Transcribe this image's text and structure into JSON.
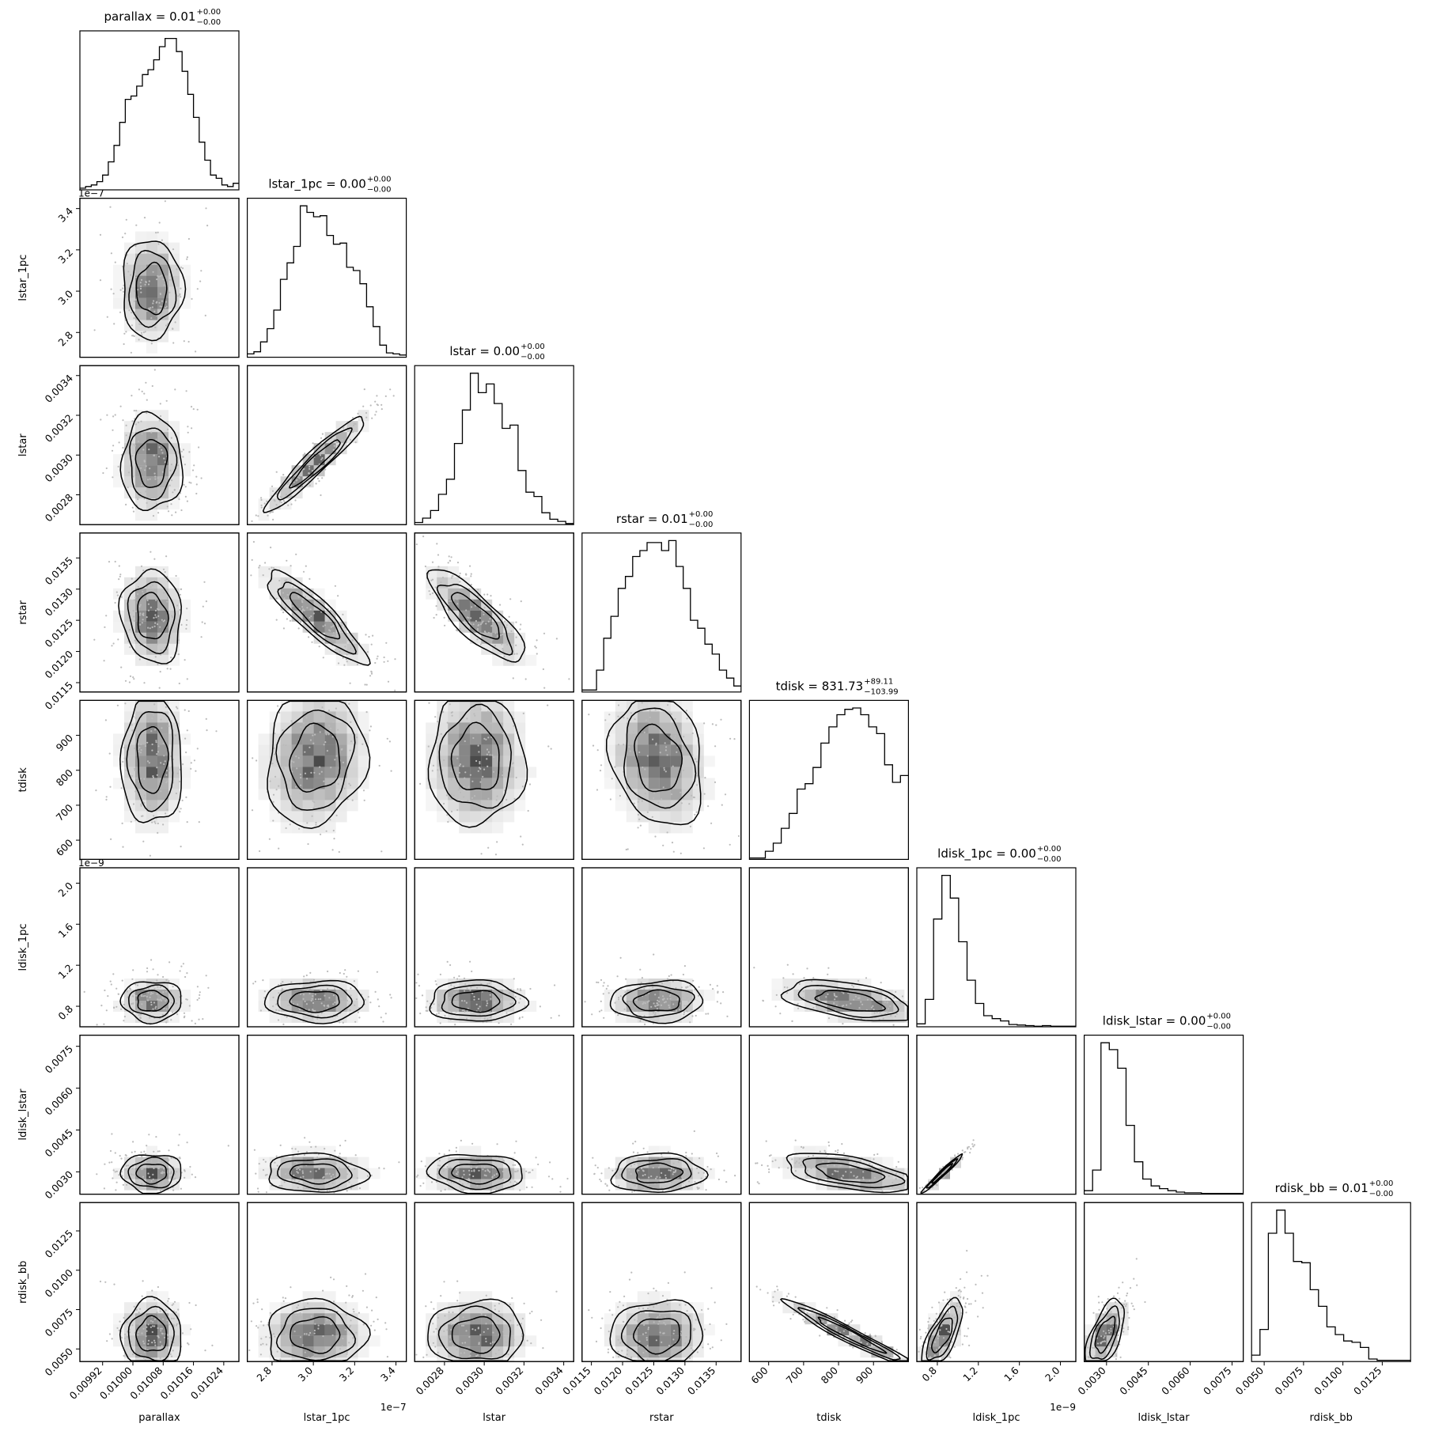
{
  "chart_data": {
    "type": "corner",
    "parameters": [
      {
        "name": "parallax",
        "title": "parallax = 0.01",
        "title_sup": "+0.00",
        "title_sub": "−0.00",
        "range": [
          0.00986,
          0.01028
        ],
        "median": 0.01005,
        "spread": 4e-05,
        "hist": [
          1,
          2,
          3,
          5,
          9,
          17,
          27,
          41,
          55,
          57,
          63,
          70,
          73,
          79,
          87,
          92,
          92,
          84,
          72,
          58,
          44,
          29,
          18,
          9,
          7,
          3,
          2,
          4
        ],
        "ticks": [
          0.00992,
          0.01,
          0.01008,
          0.01016,
          0.01024
        ],
        "tick_labels": [
          "0.00992",
          "0.01000",
          "0.01008",
          "0.01016",
          "0.01024"
        ],
        "offset": ""
      },
      {
        "name": "lstar_1pc",
        "title": "lstar_1pc = 0.00",
        "title_sup": "+0.00",
        "title_sub": "−0.00",
        "range": [
          2.68e-07,
          3.45e-07
        ],
        "median": 3.01e-07,
        "spread": 1.2e-08,
        "hist": [
          3,
          5,
          14,
          26,
          43,
          71,
          86,
          101,
          138,
          132,
          128,
          129,
          111,
          103,
          104,
          82,
          79,
          67,
          46,
          28,
          11,
          4,
          3,
          2
        ],
        "ticks": [
          2.8e-07,
          3e-07,
          3.2e-07,
          3.4e-07
        ],
        "tick_labels": [
          "2.8",
          "3.0",
          "3.2",
          "3.4"
        ],
        "offset": "1e−7"
      },
      {
        "name": "lstar",
        "title": "lstar = 0.00",
        "title_sup": "+0.00",
        "title_sub": "−0.00",
        "range": [
          0.00265,
          0.00345
        ],
        "median": 0.00296,
        "spread": 0.00012,
        "hist": [
          2,
          6,
          13,
          28,
          42,
          75,
          106,
          140,
          122,
          130,
          112,
          89,
          92,
          50,
          30,
          26,
          11,
          5,
          3,
          1
        ],
        "ticks": [
          0.0028,
          0.003,
          0.0032,
          0.0034
        ],
        "tick_labels": [
          "0.0028",
          "0.0030",
          "0.0032",
          "0.0034"
        ],
        "offset": ""
      },
      {
        "name": "rstar",
        "title": "rstar = 0.01",
        "title_sup": "+0.00",
        "title_sub": "−0.00",
        "range": [
          0.01135,
          0.0139
        ],
        "median": 0.01256,
        "spread": 0.00037,
        "hist": [
          1,
          1,
          11,
          27,
          38,
          52,
          58,
          68,
          71,
          75,
          75,
          71,
          76,
          63,
          52,
          36,
          32,
          24,
          19,
          11,
          7,
          3
        ],
        "ticks": [
          0.0115,
          0.012,
          0.0125,
          0.013,
          0.0135
        ],
        "tick_labels": [
          "0.0115",
          "0.0120",
          "0.0125",
          "0.0130",
          "0.0135"
        ],
        "offset": ""
      },
      {
        "name": "tdisk",
        "title": "tdisk = 831.73",
        "title_sup": "+89.11",
        "title_sub": "−103.99",
        "range": [
          545,
          1000
        ],
        "median": 832,
        "spread": 95,
        "hist": [
          1,
          1,
          6,
          12,
          23,
          34,
          52,
          56,
          68,
          86,
          98,
          107,
          111,
          112,
          107,
          98,
          93,
          70,
          57,
          62
        ],
        "ticks": [
          600,
          700,
          800,
          900
        ],
        "tick_labels": [
          "600",
          "700",
          "800",
          "900"
        ],
        "offset": ""
      },
      {
        "name": "ldisk_1pc",
        "title": "ldisk_1pc = 0.00",
        "title_sup": "+0.00",
        "title_sub": "−0.00",
        "range": [
          6e-10,
          2.15e-09
        ],
        "median": 8.5e-10,
        "spread": 1e-10,
        "hist": [
          5,
          47,
          185,
          260,
          221,
          146,
          80,
          40,
          19,
          14,
          10,
          4,
          3,
          2,
          1,
          2,
          1,
          1,
          1
        ],
        "ticks": [
          8e-10,
          1.2e-09,
          1.6e-09,
          2e-09
        ],
        "tick_labels": [
          "0.8",
          "1.2",
          "1.6",
          "2.0"
        ],
        "offset": "1e−9"
      },
      {
        "name": "ldisk_lstar",
        "title": "ldisk_lstar = 0.00",
        "title_sup": "+0.00",
        "title_sub": "−0.00",
        "range": [
          0.0022,
          0.0079
        ],
        "median": 0.00295,
        "spread": 0.00035,
        "hist": [
          5,
          35,
          220,
          210,
          183,
          100,
          47,
          22,
          12,
          8,
          5,
          3,
          2,
          2,
          1,
          1,
          1,
          1,
          1
        ],
        "ticks": [
          0.003,
          0.0045,
          0.006,
          0.0075
        ],
        "tick_labels": [
          "0.0030",
          "0.0045",
          "0.0060",
          "0.0075"
        ],
        "offset": ""
      },
      {
        "name": "rdisk_bb",
        "title": "rdisk_bb = 0.01",
        "title_sup": "+0.00",
        "title_sub": "−0.00",
        "range": [
          0.0042,
          0.0143
        ],
        "median": 0.0059,
        "spread": 0.0011,
        "hist": [
          5,
          25,
          100,
          118,
          100,
          78,
          77,
          56,
          43,
          27,
          21,
          16,
          15,
          11,
          2,
          1,
          1,
          1,
          1
        ],
        "ticks": [
          0.005,
          0.0075,
          0.01,
          0.0125
        ],
        "tick_labels": [
          "0.0050",
          "0.0075",
          "0.0100",
          "0.0125"
        ],
        "offset": ""
      }
    ],
    "correlations": [
      [
        0,
        0,
        0,
        0,
        0,
        0,
        0,
        0
      ],
      [
        0,
        0,
        0,
        0,
        0,
        0,
        0,
        0
      ],
      [
        0,
        0.95,
        0,
        0,
        0,
        0,
        0,
        0
      ],
      [
        -0.1,
        -0.88,
        -0.82,
        0,
        0,
        0,
        0,
        0
      ],
      [
        0,
        0.1,
        0,
        -0.2,
        0,
        0,
        0,
        0
      ],
      [
        0,
        0,
        0,
        0.05,
        -0.5,
        0,
        0,
        0
      ],
      [
        0,
        -0.1,
        -0.1,
        0.05,
        -0.55,
        0.98,
        0,
        0
      ],
      [
        0,
        0,
        0,
        0.05,
        -0.97,
        0.7,
        0.6,
        0
      ]
    ],
    "contour_levels": [
      "1σ",
      "1.5σ",
      "2σ"
    ],
    "grid": false,
    "legend": "none",
    "colors": {
      "line": "#000000",
      "points": "#bbbbbb",
      "density": "#000000",
      "background": "#ffffff"
    }
  }
}
